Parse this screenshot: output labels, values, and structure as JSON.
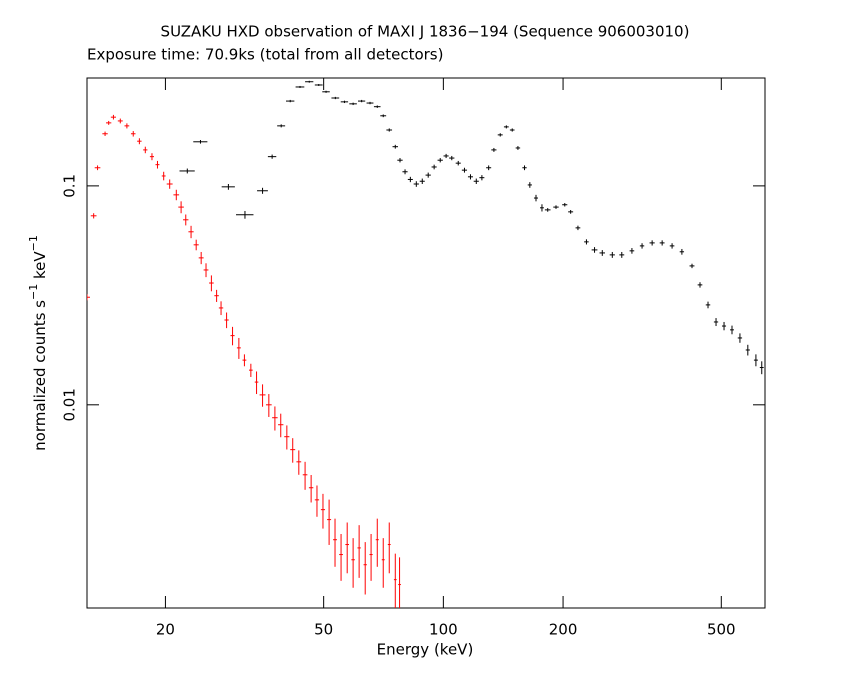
{
  "chart_data": {
    "type": "scatter",
    "title": "SUZAKU HXD observation of MAXI J 1836−194 (Sequence 906003010)",
    "subtitle": "Exposure time: 70.9ks (total from all detectors)",
    "xlabel": "Energy (keV)",
    "ylabel": [
      {
        "text": "normalized counts s"
      },
      {
        "text": "−1",
        "sup": true
      },
      {
        "text": " keV"
      },
      {
        "text": "−1",
        "sup": true
      }
    ],
    "log_x": true,
    "log_y": true,
    "xlim": [
      12.7,
      644
    ],
    "ylim": [
      0.00118,
      0.311
    ],
    "xticks": [
      20,
      50,
      100,
      200,
      500
    ],
    "yticks": [
      0.01,
      0.1
    ],
    "series": [
      {
        "color": "#ff0000",
        "x": [
          12.7,
          13.2,
          13.5,
          14.1,
          14.4,
          14.8,
          15.4,
          16.0,
          16.6,
          17.2,
          17.8,
          18.5,
          19.1,
          19.8,
          20.5,
          21.3,
          21.9,
          22.5,
          23.2,
          23.9,
          24.6,
          25.3,
          26.1,
          26.9,
          27.6,
          28.5,
          29.5,
          30.6,
          31.6,
          32.8,
          33.9,
          35.1,
          36.4,
          37.7,
          39.0,
          40.4,
          41.8,
          43.3,
          44.9,
          46.5,
          48.1,
          49.8,
          51.6,
          53.4,
          55.3,
          57.3,
          59.3,
          61.4,
          63.6,
          65.8,
          68.2,
          70.6,
          73.1,
          75.7,
          77.6
        ],
        "xerr": [
          0.22,
          0.22,
          0.22,
          0.22,
          0.22,
          0.22,
          0.22,
          0.22,
          0.22,
          0.22,
          0.22,
          0.22,
          0.22,
          0.22,
          0.35,
          0.35,
          0.35,
          0.35,
          0.35,
          0.35,
          0.35,
          0.35,
          0.35,
          0.35,
          0.35,
          0.35,
          0.35,
          0.35,
          0.35,
          0.35,
          0.35,
          0.6,
          0.6,
          0.6,
          0.6,
          0.6,
          0.6,
          0.6,
          0.6,
          0.6,
          0.6,
          0.6,
          0.6,
          0.6,
          0.6,
          0.6,
          0.6,
          0.6,
          0.6,
          0.6,
          0.6,
          0.6,
          0.6,
          0.6,
          0.6
        ],
        "values": [
          0.031,
          0.073,
          0.121,
          0.173,
          0.194,
          0.206,
          0.198,
          0.188,
          0.173,
          0.16,
          0.146,
          0.136,
          0.125,
          0.111,
          0.102,
          0.091,
          0.08,
          0.07,
          0.0617,
          0.0538,
          0.0469,
          0.0413,
          0.036,
          0.0315,
          0.0277,
          0.0244,
          0.0207,
          0.0182,
          0.016,
          0.0144,
          0.0127,
          0.0111,
          0.01,
          0.00873,
          0.00811,
          0.00715,
          0.00624,
          0.00549,
          0.00479,
          0.00418,
          0.00368,
          0.00332,
          0.00299,
          0.00242,
          0.00207,
          0.0023,
          0.00196,
          0.00222,
          0.00186,
          0.00207,
          0.00242,
          0.00196,
          0.0023,
          0.00159,
          0.00151
        ],
        "yerr": [
          0.001,
          0.002,
          0.003,
          0.004,
          0.004,
          0.005,
          0.005,
          0.005,
          0.005,
          0.005,
          0.005,
          0.005,
          0.005,
          0.005,
          0.005,
          0.005,
          0.005,
          0.004,
          0.004,
          0.003,
          0.003,
          0.003,
          0.003,
          0.002,
          0.002,
          0.002,
          0.002,
          0.002,
          0.001,
          0.001,
          0.0015,
          0.0013,
          0.0012,
          0.0011,
          0.001,
          0.0009,
          0.0008,
          0.0007,
          0.0007,
          0.0006,
          0.0006,
          0.0006,
          0.0007,
          0.0006,
          0.0005,
          0.0006,
          0.0005,
          0.0006,
          0.0005,
          0.0005,
          0.0006,
          0.0005,
          0.0006,
          0.0005,
          0.0005
        ]
      },
      {
        "color": "#000000",
        "x": [
          22.7,
          24.5,
          28.8,
          31.7,
          35.1,
          37.1,
          39.1,
          41.2,
          43.6,
          46.0,
          48.6,
          50.7,
          53.5,
          56.4,
          59.3,
          62.3,
          65.4,
          68.2,
          70.6,
          73.1,
          75.7,
          77.8,
          80.1,
          82.6,
          85.5,
          88.5,
          91.6,
          94.8,
          98.2,
          101.6,
          105,
          109,
          113,
          117,
          121,
          125,
          130,
          134,
          139,
          144,
          149,
          154,
          160,
          165,
          171,
          177,
          183,
          192,
          202,
          209,
          218,
          229,
          240,
          251,
          266,
          281,
          298,
          316,
          335,
          355,
          376,
          398,
          422,
          442,
          463,
          485,
          508,
          532,
          557,
          583,
          611,
          632
        ],
        "xerr": [
          1.0,
          1.0,
          1.1,
          1.6,
          1.1,
          0.9,
          0.9,
          1.0,
          1.1,
          1.1,
          1.1,
          1.1,
          1.2,
          1.2,
          1.3,
          1.3,
          1.3,
          1.3,
          1.2,
          1.2,
          1.2,
          1.2,
          1.2,
          1.2,
          1.3,
          1.3,
          1.4,
          1.4,
          1.5,
          1.5,
          1.6,
          1.6,
          1.7,
          1.7,
          1.8,
          1.8,
          1.9,
          2,
          2,
          2,
          2,
          2,
          2,
          2,
          2,
          2,
          3,
          3,
          3,
          3,
          3,
          3,
          4,
          4,
          4,
          4,
          4,
          4,
          5,
          5,
          5,
          5,
          6,
          6,
          6,
          6,
          6,
          6,
          7,
          7,
          7,
          7
        ],
        "values": [
          0.117,
          0.159,
          0.099,
          0.0738,
          0.095,
          0.136,
          0.188,
          0.244,
          0.283,
          0.299,
          0.289,
          0.269,
          0.252,
          0.242,
          0.237,
          0.244,
          0.239,
          0.23,
          0.209,
          0.18,
          0.151,
          0.131,
          0.116,
          0.107,
          0.102,
          0.105,
          0.112,
          0.122,
          0.131,
          0.137,
          0.134,
          0.127,
          0.118,
          0.11,
          0.105,
          0.109,
          0.121,
          0.146,
          0.171,
          0.186,
          0.18,
          0.149,
          0.121,
          0.101,
          0.088,
          0.0794,
          0.0777,
          0.08,
          0.082,
          0.0761,
          0.0643,
          0.0555,
          0.051,
          0.0494,
          0.0484,
          0.0484,
          0.0505,
          0.0532,
          0.0549,
          0.0549,
          0.0532,
          0.05,
          0.0431,
          0.0353,
          0.0286,
          0.0239,
          0.0229,
          0.022,
          0.0202,
          0.0178,
          0.016,
          0.0148
        ],
        "yerr": [
          0.003,
          0.003,
          0.003,
          0.003,
          0.003,
          0.003,
          0.003,
          0.003,
          0.003,
          0.003,
          0.003,
          0.003,
          0.003,
          0.003,
          0.003,
          0.003,
          0.003,
          0.003,
          0.003,
          0.003,
          0.003,
          0.003,
          0.003,
          0.003,
          0.003,
          0.003,
          0.003,
          0.003,
          0.003,
          0.003,
          0.003,
          0.003,
          0.003,
          0.003,
          0.003,
          0.003,
          0.003,
          0.003,
          0.003,
          0.003,
          0.003,
          0.003,
          0.003,
          0.003,
          0.003,
          0.003,
          0.0015,
          0.0015,
          0.0015,
          0.0015,
          0.0015,
          0.0015,
          0.0015,
          0.0015,
          0.0015,
          0.0015,
          0.0015,
          0.0015,
          0.0015,
          0.0015,
          0.0015,
          0.0015,
          0.001,
          0.001,
          0.001,
          0.001,
          0.001,
          0.001,
          0.001,
          0.001,
          0.001,
          0.001
        ]
      }
    ]
  }
}
